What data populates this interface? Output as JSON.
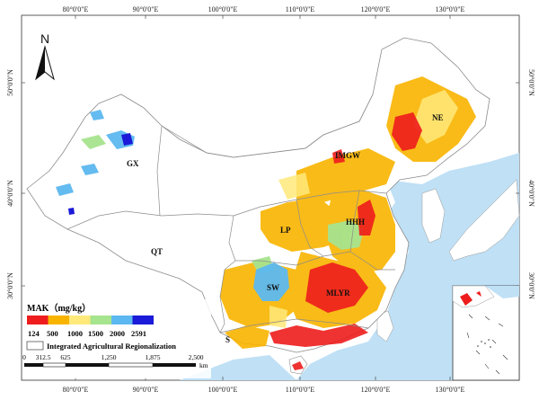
{
  "graticule": {
    "top_labels": [
      "80°0'0\"E",
      "90°0'0\"E",
      "100°0'0\"E",
      "110°0'0\"E",
      "120°0'0\"E",
      "130°0'0\"E"
    ],
    "bottom_labels": [
      "80°0'0\"E",
      "90°0'0\"E",
      "100°0'0\"E",
      "110°0'0\"E",
      "120°0'0\"E",
      "130°0'0\"E"
    ],
    "left_labels": [
      "50°0'0\"N",
      "40°0'0\"N",
      "30°0'0\"N"
    ],
    "right_labels": [
      "50°0'0\"N",
      "40°0'0\"N",
      "30°0'0\"N"
    ]
  },
  "north_arrow": {
    "letter": "N"
  },
  "regions": {
    "ne": "NE",
    "imgw": "IMGW",
    "gx": "GX",
    "lp": "LP",
    "hhh": "HHH",
    "qt": "QT",
    "sw": "SW",
    "mlyr": "MLYR",
    "s": "S"
  },
  "legend": {
    "title": "MAK（mg/kg）",
    "breaks": [
      "124",
      "500",
      "1000",
      "1500",
      "2000",
      "2591"
    ],
    "classes": [
      "#ee1c1c",
      "#f9b400",
      "#ffe97a",
      "#a6e48e",
      "#5cb8f0",
      "#1a1ad8"
    ],
    "boundary_label": "Integrated Agricultural Regionalization"
  },
  "scale_bar": {
    "ticks": [
      "0",
      "312.5",
      "625",
      "1,250",
      "1,875",
      "2,500"
    ],
    "unit": "km"
  },
  "colors": {
    "sea": "#bfe0f5",
    "land": "#ffffff",
    "boundary": "#8c8c8c",
    "low": "#ee1c1c",
    "mid": "#f9b400",
    "high_mid": "#ffe97a",
    "green": "#a6e48e",
    "blue_light": "#5cb8f0",
    "blue_dark": "#1a1ad8"
  }
}
